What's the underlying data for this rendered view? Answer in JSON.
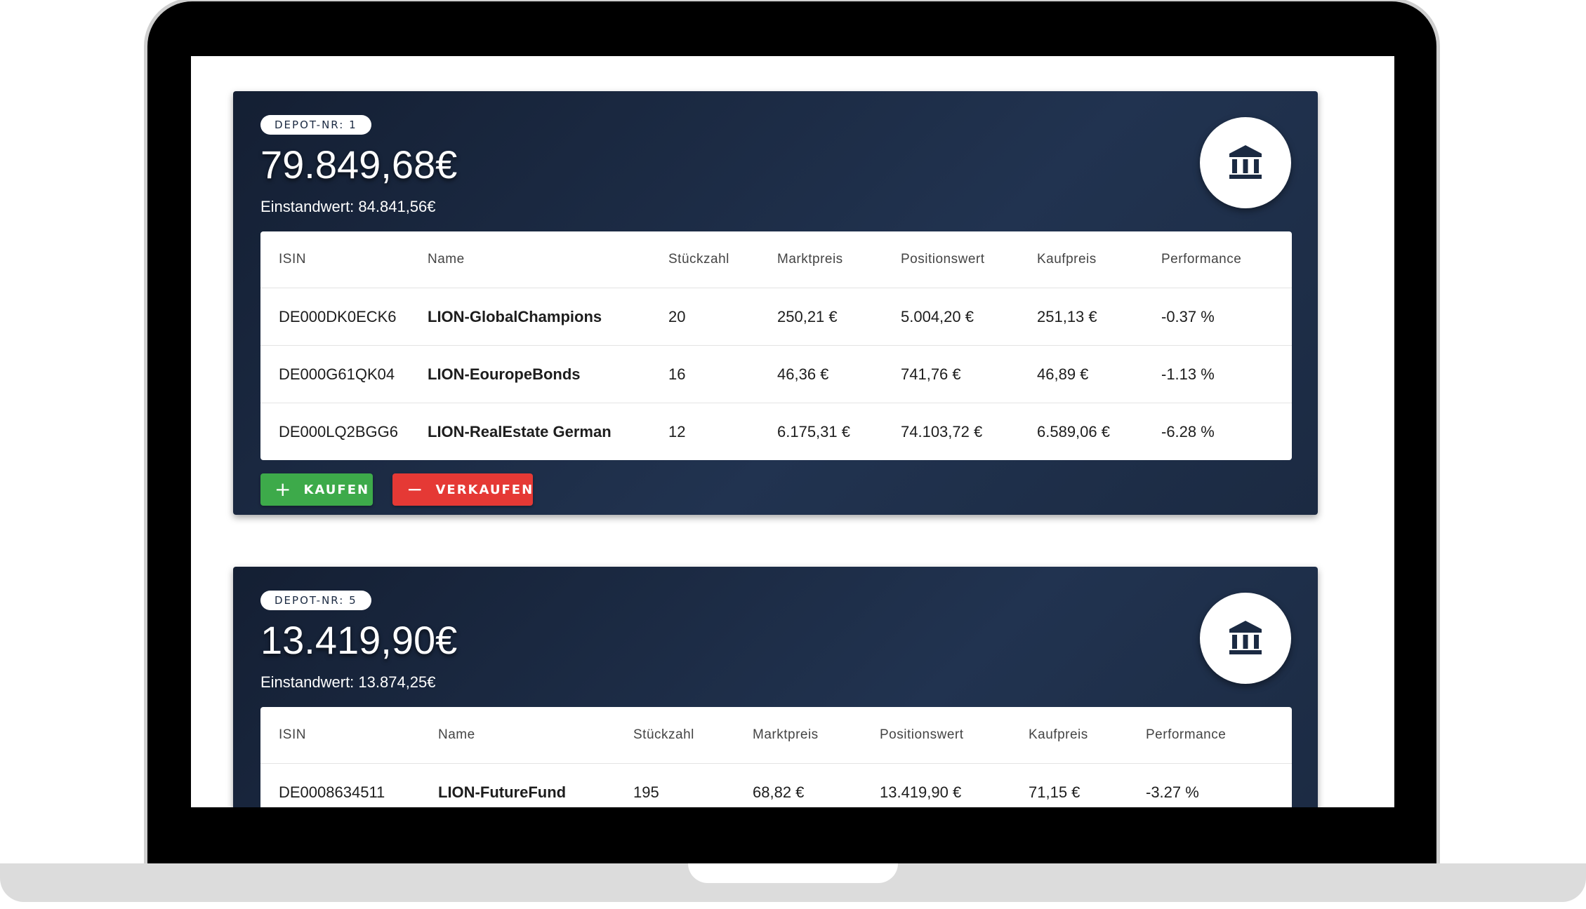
{
  "colors": {
    "card_bg": "#1b2a42",
    "buy": "#3daa4a",
    "sell": "#e53935"
  },
  "icons": {
    "bank": "bank-building-icon",
    "plus": "plus-icon",
    "minus": "minus-icon"
  },
  "depots": [
    {
      "badge": "DEPOT-NR: 1",
      "total": "79.849,68€",
      "cost": "Einstandwert: 84.841,56€",
      "headers": [
        "ISIN",
        "Name",
        "Stückzahl",
        "Marktpreis",
        "Positionswert",
        "Kaufpreis",
        "Performance"
      ],
      "rows": [
        [
          "DE000DK0ECK6",
          "LION-GlobalChampions",
          "20",
          "250,21 €",
          "5.004,20 €",
          "251,13 €",
          "-0.37 %"
        ],
        [
          "DE000G61QK04",
          "LION-EouropeBonds",
          "16",
          "46,36 €",
          "741,76 €",
          "46,89 €",
          "-1.13 %"
        ],
        [
          "DE000LQ2BGG6",
          "LION-RealEstate German",
          "12",
          "6.175,31 €",
          "74.103,72 €",
          "6.589,06 €",
          "-6.28 %"
        ]
      ],
      "buy_label": "KAUFEN",
      "sell_label": "VERKAUFEN"
    },
    {
      "badge": "DEPOT-NR: 5",
      "total": "13.419,90€",
      "cost": "Einstandwert: 13.874,25€",
      "headers": [
        "ISIN",
        "Name",
        "Stückzahl",
        "Marktpreis",
        "Positionswert",
        "Kaufpreis",
        "Performance"
      ],
      "rows": [
        [
          "DE0008634511",
          "LION-FutureFund",
          "195",
          "68,82 €",
          "13.419,90 €",
          "71,15 €",
          "-3.27 %"
        ]
      ]
    }
  ]
}
